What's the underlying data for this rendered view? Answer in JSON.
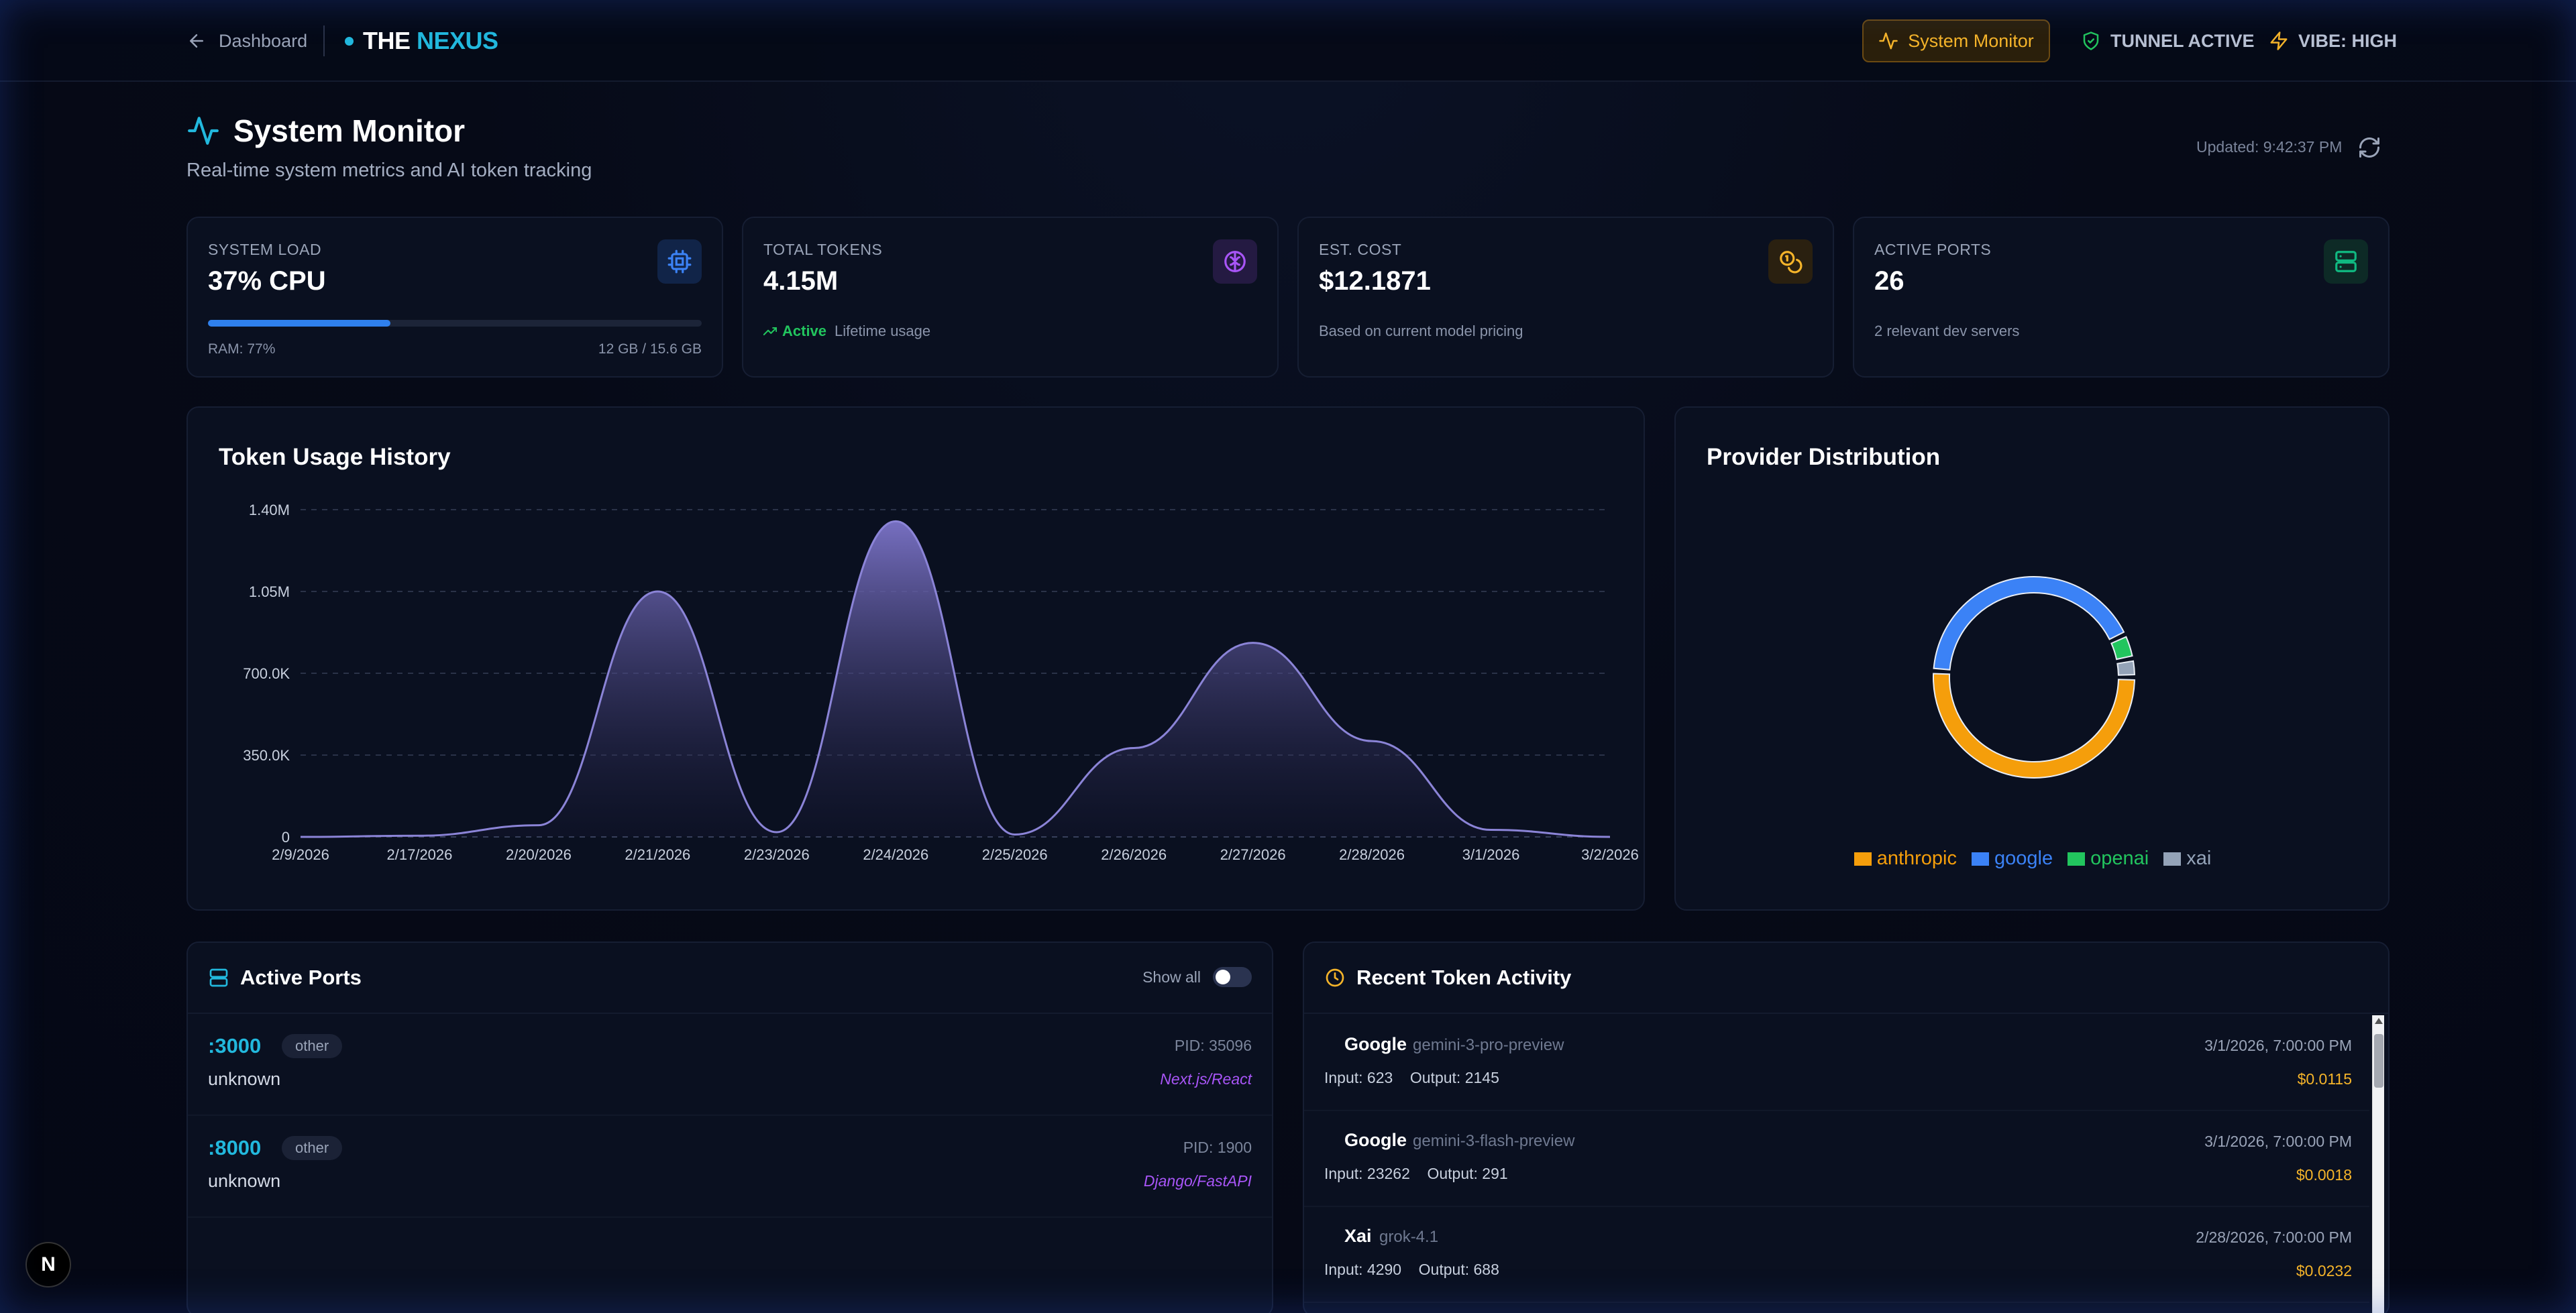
{
  "header": {
    "back_label": "Dashboard",
    "brand_prefix": "THE",
    "brand_suffix": "NEXUS",
    "nav_active": "System Monitor",
    "tunnel_status": "TUNNEL ACTIVE",
    "vibe_status": "VIBE: HIGH"
  },
  "page": {
    "title": "System Monitor",
    "subtitle": "Real-time system metrics and AI token tracking",
    "updated": "Updated: 9:42:37 PM"
  },
  "stats": {
    "load": {
      "label": "SYSTEM LOAD",
      "value": "37% CPU",
      "cpu_fraction": 0.37,
      "ram_label": "RAM: 77%",
      "ram_detail": "12 GB / 15.6 GB",
      "icon": "cpu-icon",
      "color": "#2f80ed"
    },
    "tokens": {
      "label": "TOTAL TOKENS",
      "value": "4.15M",
      "active": "Active",
      "note": "Lifetime usage",
      "icon": "brain-icon",
      "color": "#a855f7"
    },
    "cost": {
      "label": "EST. COST",
      "value": "$12.1871",
      "note": "Based on current model pricing",
      "icon": "coins-icon",
      "color": "#f5b42a"
    },
    "ports": {
      "label": "ACTIVE PORTS",
      "value": "26",
      "note": "2 relevant dev servers",
      "icon": "server-icon",
      "color": "#10b981"
    }
  },
  "token_chart": {
    "title": "Token Usage History"
  },
  "provider_chart": {
    "title": "Provider Distribution"
  },
  "chart_data": [
    {
      "type": "area",
      "title": "Token Usage History",
      "xlabel": "",
      "ylabel": "",
      "x": [
        "2/9/2026",
        "2/17/2026",
        "2/20/2026",
        "2/21/2026",
        "2/23/2026",
        "2/24/2026",
        "2/25/2026",
        "2/26/2026",
        "2/27/2026",
        "2/28/2026",
        "3/1/2026",
        "3/2/2026"
      ],
      "values": [
        0,
        5000,
        50000,
        1050000,
        20000,
        1350000,
        10000,
        380000,
        830000,
        410000,
        30000,
        0
      ],
      "yticks": [
        "0",
        "350.0K",
        "700.0K",
        "1.05M",
        "1.40M"
      ],
      "ylim": [
        0,
        1400000
      ],
      "grid": true,
      "color": "#8b84d7"
    },
    {
      "type": "pie",
      "title": "Provider Distribution",
      "labels": [
        "anthropic",
        "google",
        "openai",
        "xai"
      ],
      "values": [
        51,
        42,
        4,
        3
      ],
      "colors": [
        "#f59e0b",
        "#3b82f6",
        "#22c55e",
        "#94a3b8"
      ],
      "legend": "bottom"
    }
  ],
  "ports_panel": {
    "title": "Active Ports",
    "toggle_label": "Show all",
    "rows": [
      {
        "port": ":3000",
        "tag": "other",
        "process": "unknown",
        "pid": "PID: 35096",
        "framework": "Next.js/React"
      },
      {
        "port": ":8000",
        "tag": "other",
        "process": "unknown",
        "pid": "PID: 1900",
        "framework": "Django/FastAPI"
      }
    ]
  },
  "activity_panel": {
    "title": "Recent Token Activity",
    "rows": [
      {
        "provider": "Google",
        "model": "gemini-3-pro-preview",
        "time": "3/1/2026, 7:00:00 PM",
        "io": "Input: 623    Output: 2145",
        "cost": "$0.0115"
      },
      {
        "provider": "Google",
        "model": "gemini-3-flash-preview",
        "time": "3/1/2026, 7:00:00 PM",
        "io": "Input: 23262    Output: 291",
        "cost": "$0.0018"
      },
      {
        "provider": "Xai",
        "model": "grok-4.1",
        "time": "2/28/2026, 7:00:00 PM",
        "io": "Input: 4290    Output: 688",
        "cost": "$0.0232"
      }
    ]
  },
  "badge": "N"
}
